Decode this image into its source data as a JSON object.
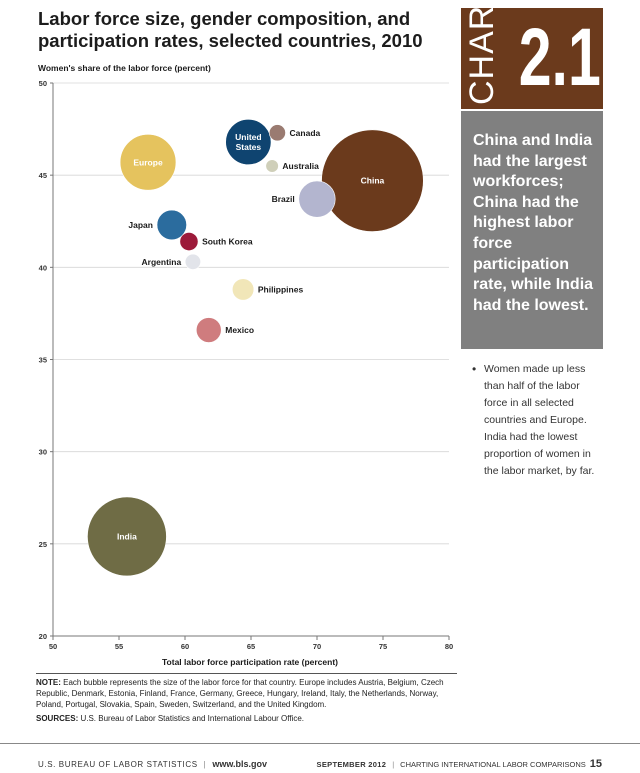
{
  "page": {
    "title": "Labor force size, gender composition, and participation rates, selected countries, 2010",
    "chart_word": "CHART",
    "chart_number": "2.1",
    "headline": "China and India had the largest workforces; China had the highest labor force participation rate, while India had the lowest.",
    "bullet": "Women made up less than half of the labor force in all selected countries and Europe. India had the lowest proportion of women in the labor market, by far.",
    "note_label": "NOTE:",
    "note_text": "Each bubble represents the size of the labor force for that country. Europe includes  Austria, Belgium, Czech Republic, Denmark, Estonia, Finland, France, Germany, Greece, Hungary, Ireland, Italy, the Netherlands, Norway, Poland, Portugal, Slovakia, Spain, Sweden, Switzerland, and the United Kingdom.",
    "sources_label": "SOURCES:",
    "sources_text": "U.S. Bureau of Labor Statistics and International Labour Office.",
    "footer_agency": "U.S. BUREAU OF LABOR STATISTICS",
    "footer_url": "www.bls.gov",
    "footer_date": "SEPTEMBER 2012",
    "footer_pub": "CHARTING INTERNATIONAL LABOR COMPARISONS",
    "footer_page": "15",
    "colors": {
      "tag": "#6b3a1c",
      "callout": "#808080"
    }
  },
  "chart_data": {
    "type": "scatter",
    "title": "Labor force size, gender composition, and participation rates, selected countries, 2010",
    "xlabel": "Total labor force participation rate (percent)",
    "ylabel": "Women's share of the labor force (percent)",
    "xlim": [
      50,
      80
    ],
    "ylim": [
      20,
      50
    ],
    "xticks": [
      50,
      55,
      60,
      65,
      70,
      75,
      80
    ],
    "yticks": [
      20,
      25,
      30,
      35,
      40,
      45,
      50
    ],
    "grid": "horizontal",
    "points": [
      {
        "label": "China",
        "x": 74.2,
        "y": 44.7,
        "size": 780,
        "color": "#6b3a1c",
        "label_pos": "inside"
      },
      {
        "label": "India",
        "x": 55.6,
        "y": 25.4,
        "size": 470,
        "color": "#6f6c45",
        "label_pos": "inside"
      },
      {
        "label": "Europe",
        "x": 57.2,
        "y": 45.7,
        "size": 235,
        "color": "#e5c35e",
        "label_pos": "inside"
      },
      {
        "label": "United States",
        "x": 64.8,
        "y": 46.8,
        "size": 155,
        "color": "#0f4470",
        "label_pos": "inside"
      },
      {
        "label": "Brazil",
        "x": 70.0,
        "y": 43.7,
        "size": 100,
        "color": "#b3b5cf",
        "label_pos": "left"
      },
      {
        "label": "Japan",
        "x": 59.0,
        "y": 42.3,
        "size": 66,
        "color": "#2b6c9e",
        "label_pos": "left"
      },
      {
        "label": "Mexico",
        "x": 61.8,
        "y": 36.6,
        "size": 47,
        "color": "#cf7c7e",
        "label_pos": "right"
      },
      {
        "label": "South Korea",
        "x": 60.3,
        "y": 41.4,
        "size": 25,
        "color": "#9c1a3a",
        "label_pos": "right"
      },
      {
        "label": "Philippines",
        "x": 64.4,
        "y": 38.8,
        "size": 35,
        "color": "#f1e6b8",
        "label_pos": "right"
      },
      {
        "label": "Argentina",
        "x": 60.6,
        "y": 40.3,
        "size": 18,
        "color": "#e2e4ea",
        "label_pos": "left"
      },
      {
        "label": "Canada",
        "x": 67.0,
        "y": 47.3,
        "size": 20,
        "color": "#9a7b71",
        "label_pos": "right"
      },
      {
        "label": "Australia",
        "x": 66.6,
        "y": 45.5,
        "size": 12,
        "color": "#cfcfb9",
        "label_pos": "right"
      }
    ]
  }
}
